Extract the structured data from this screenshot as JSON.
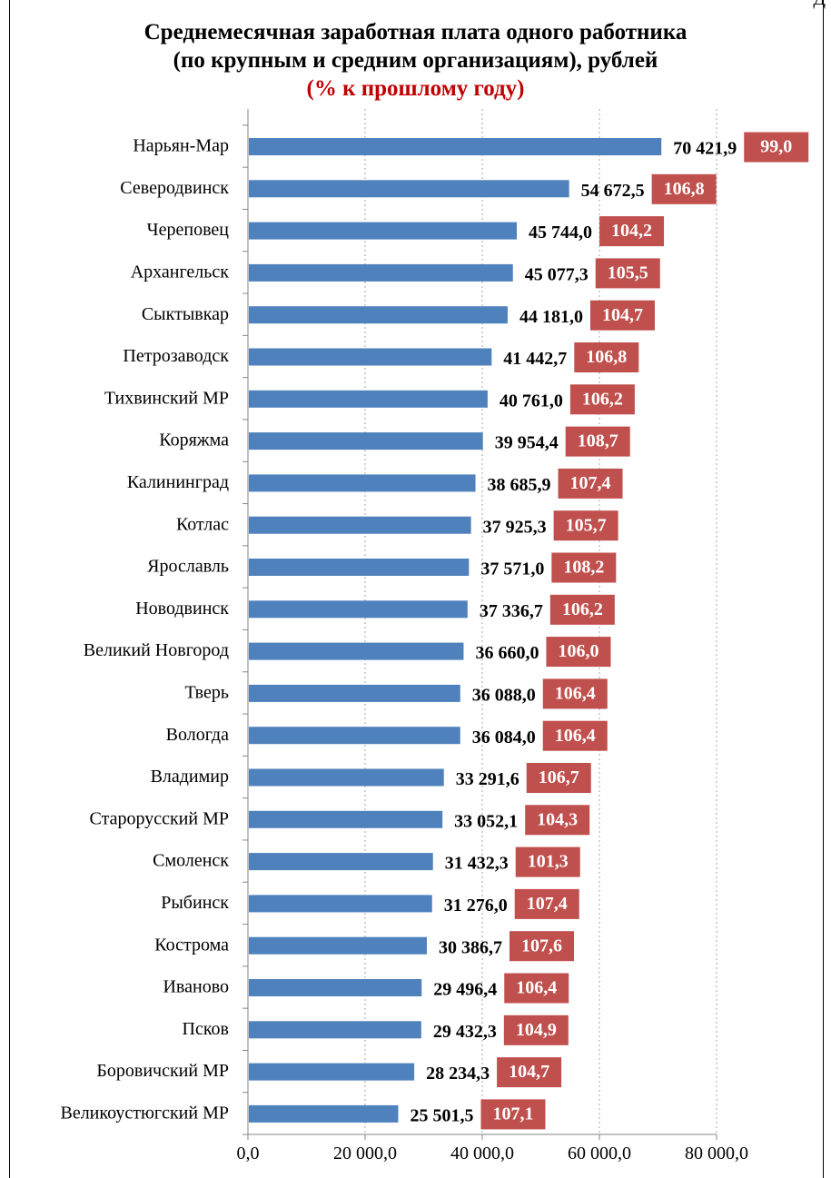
{
  "corner_mark": "Д",
  "colors": {
    "bar": "#4f81bd",
    "badge": "#c0504d",
    "axis": "#868686",
    "grid": "#a6a6a6",
    "title_accent": "#c00000"
  },
  "chart_data": {
    "type": "bar",
    "orientation": "horizontal",
    "title": "Среднемесячная заработная плата одного работника",
    "title_line2": "(по крупным и средним организациям), рублей",
    "subtitle": "(% к прошлому году)",
    "xlim": [
      0,
      80000
    ],
    "x_ticks": [
      0,
      20000,
      40000,
      60000,
      80000
    ],
    "x_tick_labels": [
      "0,0",
      "20 000,0",
      "40 000,0",
      "60 000,0",
      "80 000,0"
    ],
    "grid": "vertical dotted",
    "categories": [
      "Нарьян-Мар",
      "Северодвинск",
      "Череповец",
      "Архангельск",
      "Сыктывкар",
      "Петрозаводск",
      "Тихвинский МР",
      "Коряжма",
      "Калининград",
      "Котлас",
      "Ярославль",
      "Новодвинск",
      "Великий Новгород",
      "Тверь",
      "Вологда",
      "Владимир",
      "Старорусский МР",
      "Смоленск",
      "Рыбинск",
      "Кострома",
      "Иваново",
      "Псков",
      "Боровичский МР",
      "Великоустюгский МР"
    ],
    "values": [
      70421.9,
      54672.5,
      45744.0,
      45077.3,
      44181.0,
      41442.7,
      40761.0,
      39954.4,
      38685.9,
      37925.3,
      37571.0,
      37336.7,
      36660.0,
      36088.0,
      36084.0,
      33291.6,
      33052.1,
      31432.3,
      31276.0,
      30386.7,
      29496.4,
      29432.3,
      28234.3,
      25501.5
    ],
    "value_labels": [
      "70 421,9",
      "54 672,5",
      "45 744,0",
      "45 077,3",
      "44 181,0",
      "41 442,7",
      "40 761,0",
      "39 954,4",
      "38 685,9",
      "37 925,3",
      "37 571,0",
      "37 336,7",
      "36 660,0",
      "36 088,0",
      "36 084,0",
      "33 291,6",
      "33 052,1",
      "31 432,3",
      "31 276,0",
      "30 386,7",
      "29 496,4",
      "29 432,3",
      "28 234,3",
      "25 501,5"
    ],
    "percent_of_previous_year": [
      "99,0",
      "106,8",
      "104,2",
      "105,5",
      "104,7",
      "106,8",
      "106,2",
      "108,7",
      "107,4",
      "105,7",
      "108,2",
      "106,2",
      "106,0",
      "106,4",
      "106,4",
      "106,7",
      "104,3",
      "101,3",
      "107,4",
      "107,6",
      "106,4",
      "104,9",
      "104,7",
      "107,1"
    ]
  }
}
